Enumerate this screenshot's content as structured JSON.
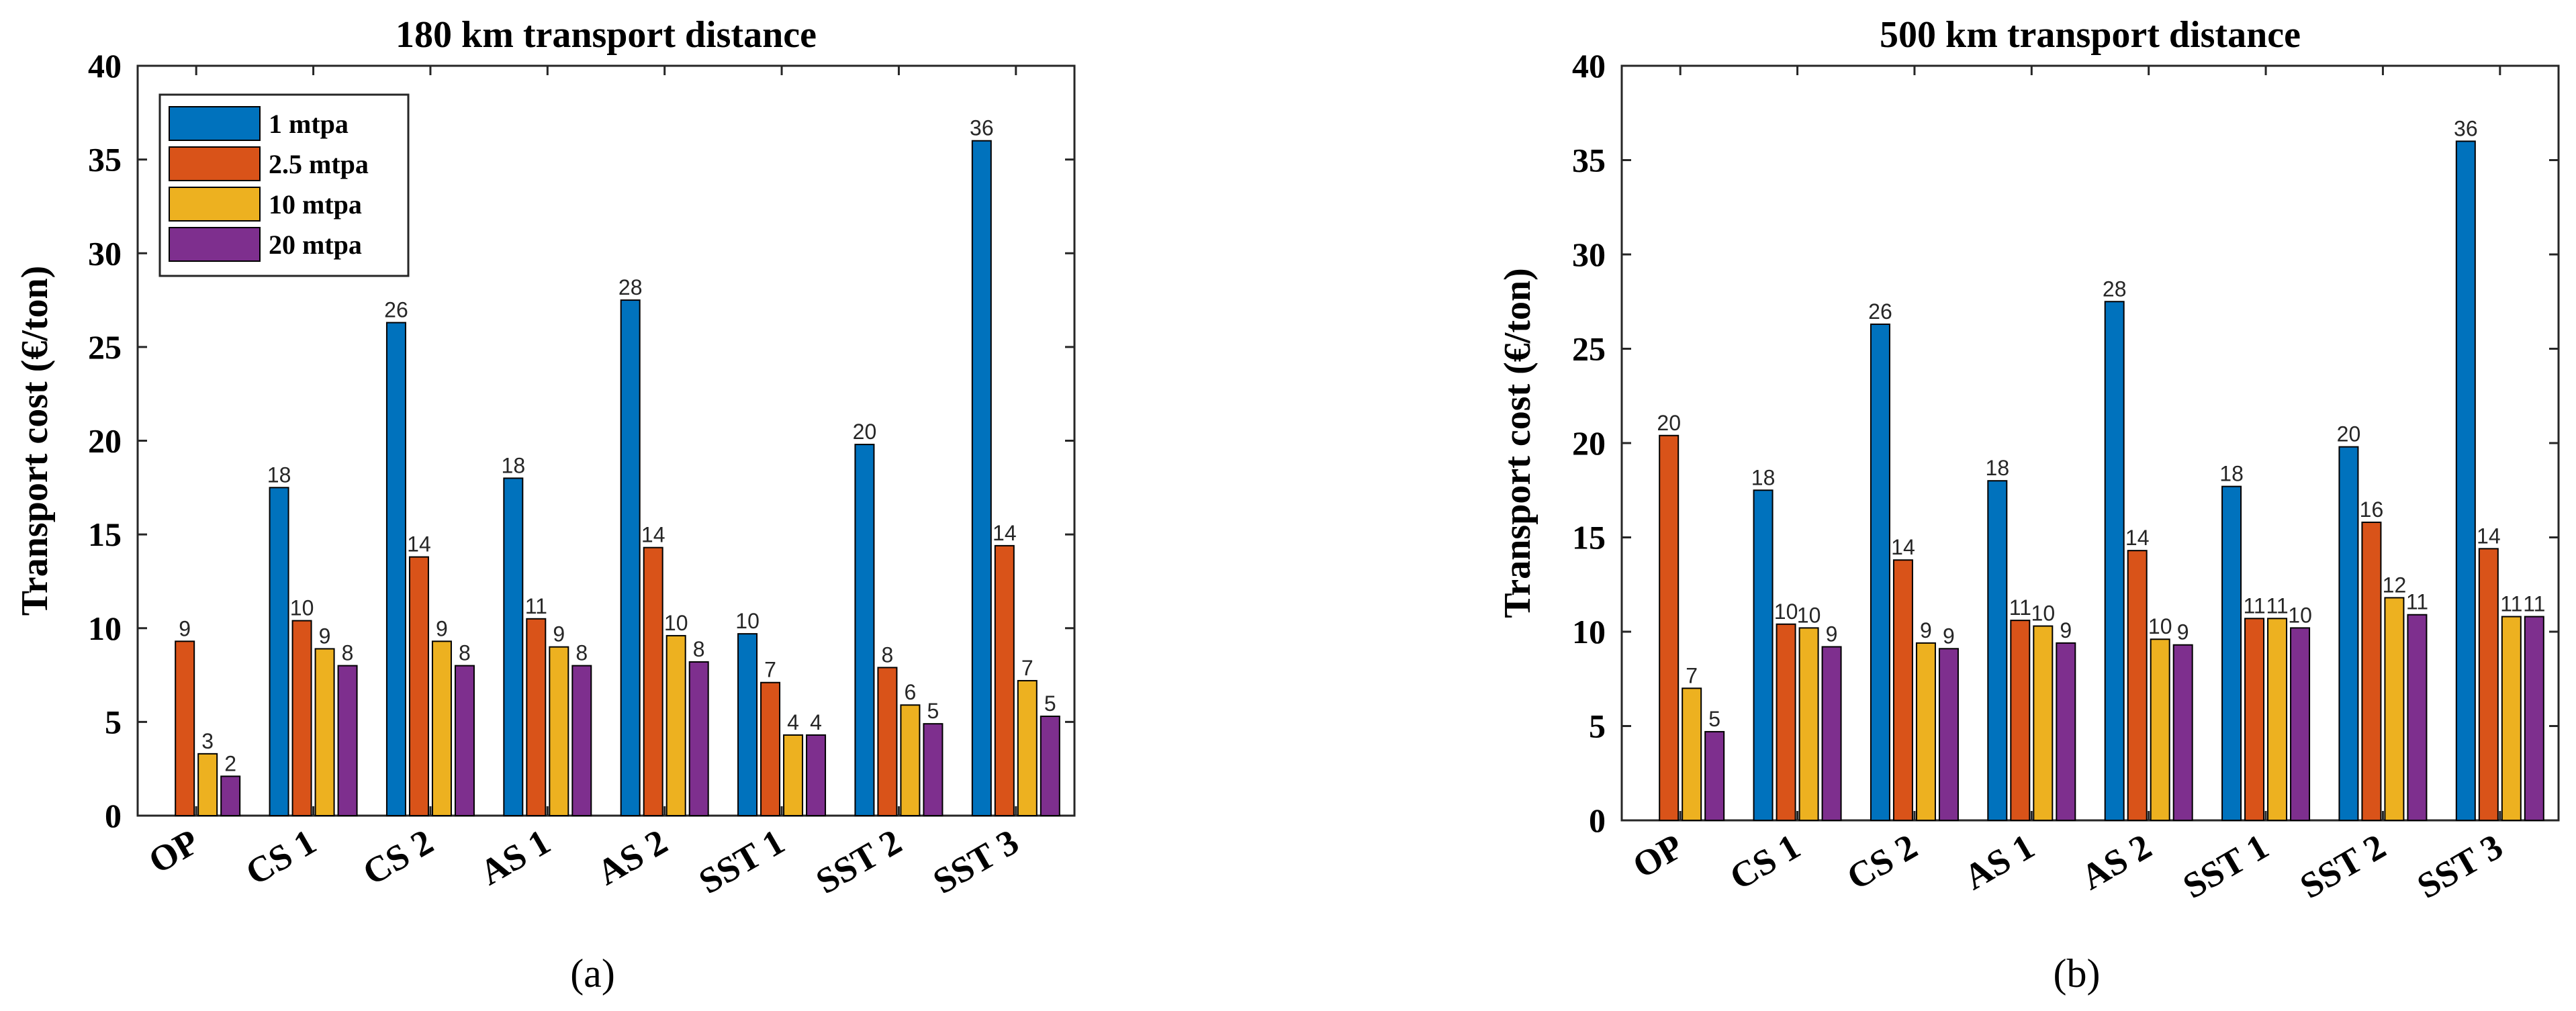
{
  "colors": [
    "#0072BD",
    "#D95319",
    "#EDB120",
    "#7E2F8E"
  ],
  "legend": {
    "entries": [
      "1 mtpa",
      "2.5 mtpa",
      "10 mtpa",
      "20 mtpa"
    ]
  },
  "chart_data": [
    {
      "type": "bar",
      "title": "180 km transport distance",
      "panel_label": "(a)",
      "ylabel": "Transport cost (€/ton)",
      "xlabel": "",
      "ylim": [
        0,
        40
      ],
      "yticks": [
        "0",
        "5",
        "10",
        "15",
        "20",
        "25",
        "30",
        "35",
        "40"
      ],
      "legend_position": "top-left",
      "categories": [
        "OP",
        "CS 1",
        "CS 2",
        "AS 1",
        "AS 2",
        "SST 1",
        "SST 2",
        "SST 3"
      ],
      "series": [
        {
          "name": "1 mtpa",
          "values": [
            null,
            17.5,
            26.3,
            18.0,
            27.5,
            9.7,
            19.8,
            36.0
          ],
          "labels": [
            "",
            "18",
            "26",
            "18",
            "28",
            "10",
            "20",
            "36"
          ]
        },
        {
          "name": "2.5 mtpa",
          "values": [
            9.3,
            10.4,
            13.8,
            10.5,
            14.3,
            7.1,
            7.9,
            14.4
          ],
          "labels": [
            "9",
            "10",
            "14",
            "11",
            "14",
            "7",
            "8",
            "14"
          ]
        },
        {
          "name": "10 mtpa",
          "values": [
            3.3,
            8.9,
            9.3,
            9.0,
            9.6,
            4.3,
            5.9,
            7.2
          ],
          "labels": [
            "3",
            "9",
            "9",
            "9",
            "10",
            "4",
            "6",
            "7"
          ]
        },
        {
          "name": "20 mtpa",
          "values": [
            2.1,
            8.0,
            8.0,
            8.0,
            8.2,
            4.3,
            4.9,
            5.3
          ],
          "labels": [
            "2",
            "8",
            "8",
            "8",
            "8",
            "4",
            "5",
            "5"
          ]
        }
      ]
    },
    {
      "type": "bar",
      "title": "500 km transport distance",
      "panel_label": "(b)",
      "ylabel": "Transport cost (€/ton)",
      "xlabel": "",
      "ylim": [
        0,
        40
      ],
      "yticks": [
        "0",
        "5",
        "10",
        "15",
        "20",
        "25",
        "30",
        "35",
        "40"
      ],
      "categories": [
        "OP",
        "CS 1",
        "CS 2",
        "AS 1",
        "AS 2",
        "SST 1",
        "SST 2",
        "SST 3"
      ],
      "series": [
        {
          "name": "1 mtpa",
          "values": [
            null,
            17.5,
            26.3,
            18.0,
            27.5,
            17.7,
            19.8,
            36.0
          ],
          "labels": [
            "",
            "18",
            "26",
            "18",
            "28",
            "18",
            "20",
            "36"
          ]
        },
        {
          "name": "2.5 mtpa",
          "values": [
            20.4,
            10.4,
            13.8,
            10.6,
            14.3,
            10.7,
            15.8,
            14.4
          ],
          "labels": [
            "20",
            "10",
            "14",
            "11",
            "14",
            "11",
            "16",
            "14"
          ]
        },
        {
          "name": "10 mtpa",
          "values": [
            7.0,
            10.2,
            9.4,
            10.3,
            9.6,
            10.7,
            11.8,
            10.8
          ],
          "labels": [
            "7",
            "10",
            "9",
            "10",
            "10",
            "11",
            "12",
            "11"
          ]
        },
        {
          "name": "20 mtpa",
          "values": [
            4.7,
            9.2,
            9.1,
            9.4,
            9.3,
            10.2,
            10.9,
            10.8
          ],
          "labels": [
            "5",
            "9",
            "9",
            "9",
            "9",
            "10",
            "11",
            "11"
          ]
        }
      ]
    }
  ]
}
